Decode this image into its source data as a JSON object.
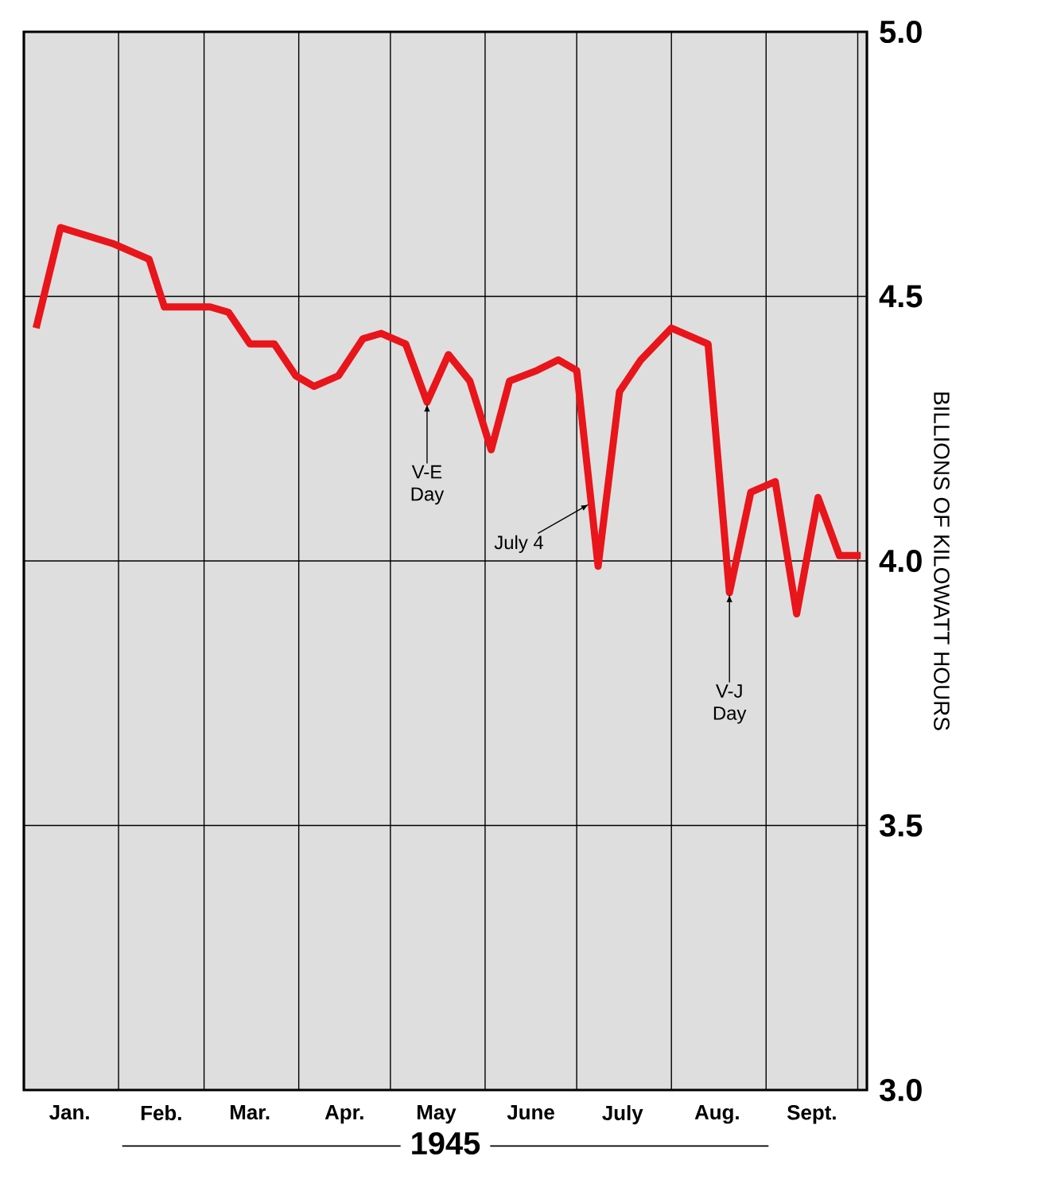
{
  "chart_data": {
    "type": "line",
    "xlabel": "1945",
    "ylabel": "BILLIONS OF KILOWATT HOURS",
    "x": [
      "1945-01-05",
      "1945-01-13",
      "1945-01-30",
      "1945-02-11",
      "1945-02-16",
      "1945-03-03",
      "1945-03-09",
      "1945-03-16",
      "1945-03-24",
      "1945-03-31",
      "1945-04-06",
      "1945-04-14",
      "1945-04-22",
      "1945-04-28",
      "1945-05-06",
      "1945-05-13",
      "1945-05-20",
      "1945-05-27",
      "1945-06-03",
      "1945-06-09",
      "1945-06-18",
      "1945-06-25",
      "1945-07-01",
      "1945-07-08",
      "1945-07-15",
      "1945-07-22",
      "1945-08-01",
      "1945-08-13",
      "1945-08-20",
      "1945-08-27",
      "1945-09-04",
      "1945-09-11",
      "1945-09-18",
      "1945-09-25",
      "1945-10-02"
    ],
    "series": [
      {
        "color": "#e8151b",
        "values": [
          4.44,
          4.63,
          4.6,
          4.57,
          4.48,
          4.48,
          4.47,
          4.41,
          4.41,
          4.35,
          4.33,
          4.35,
          4.42,
          4.43,
          4.41,
          4.3,
          4.39,
          4.34,
          4.21,
          4.34,
          4.36,
          4.38,
          4.36,
          3.99,
          4.32,
          4.38,
          4.44,
          4.41,
          3.94,
          4.13,
          4.15,
          3.9,
          4.12,
          4.01,
          4.01
        ]
      }
    ],
    "xlim": [
      "1945-01-01",
      "1945-10-04"
    ],
    "ylim": [
      3.0,
      5.0
    ],
    "xticks": [
      {
        "value": "1945-02-01",
        "label": null
      },
      {
        "value": "1945-03-01",
        "label": null
      },
      {
        "value": "1945-04-01",
        "label": null
      },
      {
        "value": "1945-05-01",
        "label": null
      },
      {
        "value": "1945-06-01",
        "label": null
      },
      {
        "value": "1945-07-01",
        "label": null
      },
      {
        "value": "1945-08-01",
        "label": null
      },
      {
        "value": "1945-09-01",
        "label": null
      },
      {
        "value": "1945-10-01",
        "label": null
      },
      {
        "value": "1945-01-16",
        "label": "Jan."
      },
      {
        "value": "1945-02-15",
        "label": "Feb."
      },
      {
        "value": "1945-03-16",
        "label": "Mar."
      },
      {
        "value": "1945-04-16",
        "label": "Apr."
      },
      {
        "value": "1945-05-16",
        "label": "May"
      },
      {
        "value": "1945-06-16",
        "label": "June"
      },
      {
        "value": "1945-07-16",
        "label": "July"
      },
      {
        "value": "1945-08-16",
        "label": "Aug."
      },
      {
        "value": "1945-09-16",
        "label": "Sept."
      }
    ],
    "yticks": [
      {
        "value": 3.0,
        "label": "3.0"
      },
      {
        "value": 3.5,
        "label": "3.5"
      },
      {
        "value": 4.0,
        "label": "4.0"
      },
      {
        "value": 4.5,
        "label": "4.5"
      },
      {
        "value": 5.0,
        "label": "5.0"
      }
    ],
    "grid": true,
    "marker": "none",
    "line_style": "solid",
    "annotations": [
      {
        "text": "V-E Day",
        "x": "1945-05-13",
        "y": 4.3
      },
      {
        "text": "July 4",
        "x": "1945-07-05",
        "y": 4.11
      },
      {
        "text": "V-J Day",
        "x": "1945-08-20",
        "y": 3.94
      }
    ]
  }
}
